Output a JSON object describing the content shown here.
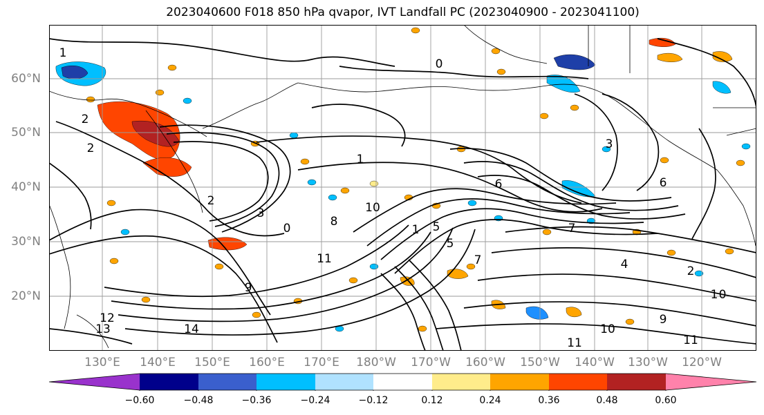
{
  "title": "2023040600 F018 850 hPa qvapor, IVT Landfall PC (2023040900 - 2023041100)",
  "lat_labels": [
    "60°N",
    "50°N",
    "40°N",
    "30°N",
    "20°N"
  ],
  "lon_labels": [
    "130°E",
    "140°E",
    "150°E",
    "160°E",
    "170°E",
    "180°W",
    "170°W",
    "160°W",
    "150°W",
    "140°W",
    "130°W",
    "120°W"
  ],
  "colorbar": {
    "ticks": [
      "−0.60",
      "−0.48",
      "−0.36",
      "−0.24",
      "−0.12",
      "0.12",
      "0.24",
      "0.36",
      "0.48",
      "0.60"
    ],
    "colors": [
      "#9932cc",
      "#00008b",
      "#3a5fcd",
      "#00bfff",
      "#b0e2ff",
      "#ffffff",
      "#ffec8b",
      "#ffa500",
      "#ff4500",
      "#b22222",
      "#ff82ab"
    ]
  },
  "contour_labels": [
    "1",
    "2",
    "0",
    "1",
    "2",
    "3",
    "5",
    "6",
    "7",
    "8",
    "9",
    "10",
    "11",
    "12",
    "13",
    "14",
    "0",
    "1",
    "2",
    "3",
    "4",
    "5",
    "6",
    "7",
    "9",
    "10",
    "11",
    "1",
    "0",
    "2",
    "11"
  ],
  "palette": {
    "line": "#000000",
    "grid": "#9a9a9a",
    "neg_dark": "#1e3fa8",
    "neg_mid": "#1e90ff",
    "neg_light": "#00bfff",
    "pos_light": "#ffec8b",
    "pos_mid": "#ffa500",
    "pos_strong": "#ff4500",
    "pos_dark": "#b22222"
  }
}
